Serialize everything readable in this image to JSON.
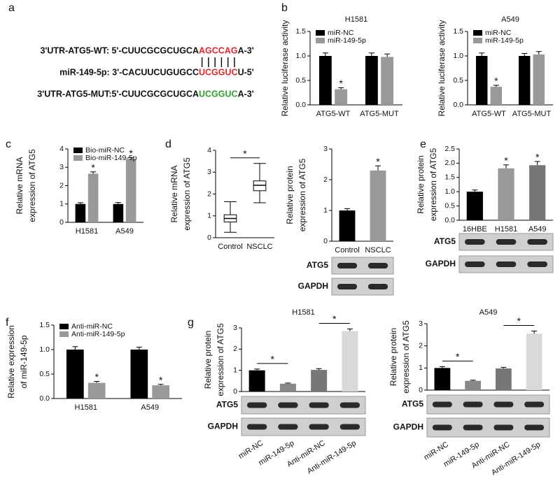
{
  "panel_labels": [
    "a",
    "b",
    "c",
    "d",
    "e",
    "f",
    "g"
  ],
  "sequences": [
    {
      "label": "3'UTR-ATG5-WT: 5'-CUUCGCGCUGCA",
      "site": "AGCCAG",
      "end": "A-3'",
      "color": "#e8262a"
    },
    {
      "label": "miR-149-5p: 3'-CACUUCUGUGCC",
      "site": "UCGGUC",
      "end": "U-5'",
      "color": "#e8262a"
    },
    {
      "label": "3'UTR-ATG5-MUT:5'-CUUCGCGCUGCA",
      "site": "UCGGUC",
      "end": "A-3'",
      "color": "#2aa52a"
    }
  ],
  "chart_data": [
    {
      "type": "bar",
      "title": "H1581",
      "ylabel": [
        "Relative luciferase activity"
      ],
      "categories": [
        "ATG5-WT",
        "ATG5-MUT"
      ],
      "series": [
        {
          "name": "miR-NC",
          "color": "#000000",
          "values": [
            1.0,
            1.0
          ],
          "errors": [
            0.06,
            0.06
          ]
        },
        {
          "name": "miR-149-5p",
          "color": "#999999",
          "values": [
            0.32,
            0.98
          ],
          "errors": [
            0.03,
            0.06
          ]
        }
      ],
      "ylim": [
        0,
        1.5
      ],
      "yticks": [
        {
          "value": 0,
          "label": "0.0"
        },
        0.5,
        {
          "value": 1,
          "label": "1.0"
        },
        1.5
      ],
      "legend": "upper left",
      "annotations": [
        {
          "text": "*",
          "series": 1,
          "index": 0
        }
      ]
    },
    {
      "type": "bar",
      "title": "A549",
      "ylabel": [
        "Relative luciferase activity"
      ],
      "categories": [
        "ATG5-WT",
        "ATG5-MUT"
      ],
      "series": [
        {
          "name": "miR-NC",
          "color": "#000000",
          "values": [
            1.0,
            1.0
          ],
          "errors": [
            0.06,
            0.05
          ]
        },
        {
          "name": "miR-149-5p",
          "color": "#999999",
          "values": [
            0.37,
            1.03
          ],
          "errors": [
            0.03,
            0.06
          ]
        }
      ],
      "ylim": [
        0,
        1.5
      ],
      "yticks": [
        {
          "value": 0,
          "label": "0.0"
        },
        0.5,
        {
          "value": 1,
          "label": "1.0"
        },
        1.5
      ],
      "legend": "upper left",
      "annotations": [
        {
          "text": "*",
          "series": 1,
          "index": 0
        }
      ]
    },
    {
      "type": "bar",
      "ylabel": [
        "Relative  mRNA",
        "expression of ATG5"
      ],
      "categories": [
        "H1581",
        "A549"
      ],
      "series": [
        {
          "name": "Bio-miR-NC",
          "color": "#000000",
          "values": [
            1,
            1
          ],
          "errors": [
            0.07,
            0.08
          ]
        },
        {
          "name": "Bio-miR-149-5p",
          "color": "#999999",
          "values": [
            2.65,
            3.45
          ],
          "errors": [
            0.1,
            0.08
          ]
        }
      ],
      "ylim": [
        0,
        4
      ],
      "yticks": [
        0,
        1,
        2,
        3,
        4
      ],
      "legend": "upper left",
      "annotations": [
        {
          "text": "*",
          "series": 1,
          "index": 0
        },
        {
          "text": "*",
          "series": 1,
          "index": 1
        }
      ]
    },
    {
      "type": "box",
      "ylabel": [
        "Relative mRNA",
        "expression of ATG5"
      ],
      "categories": [
        "Control",
        "NSCLC"
      ],
      "boxes": [
        {
          "min": 0.25,
          "q1": 0.72,
          "median": 0.88,
          "q3": 1.05,
          "max": 1.65
        },
        {
          "min": 1.6,
          "q1": 2.15,
          "median": 2.4,
          "q3": 2.6,
          "max": 3.4
        }
      ],
      "ylim": [
        0,
        4
      ],
      "yticks": [
        0,
        1,
        2,
        3,
        4
      ],
      "annotations": [
        {
          "text": "*",
          "from": 0,
          "to": 1
        }
      ]
    },
    {
      "type": "bar",
      "ylabel": [
        "Relative protein",
        "expression of ATG5"
      ],
      "categories": [
        "Control",
        "NSCLC"
      ],
      "values": [
        1,
        2.3
      ],
      "errors": [
        0.06,
        0.15
      ],
      "colors": [
        "#000000",
        "#999999"
      ],
      "ylim": [
        0,
        3
      ],
      "yticks": [
        0,
        1,
        2,
        3
      ],
      "annotations": [
        {
          "text": "*",
          "index": 1
        }
      ],
      "blots": [
        "ATG5",
        "GAPDH"
      ]
    },
    {
      "type": "bar",
      "ylabel": [
        "Relative protein",
        "expression of ATG5"
      ],
      "categories": [
        "16HBE",
        "H1581",
        "A549"
      ],
      "values": [
        1,
        1.82,
        1.93
      ],
      "errors": [
        0.06,
        0.12,
        0.13
      ],
      "colors": [
        "#000000",
        "#999999",
        "#777777"
      ],
      "ylim": [
        0,
        2.5
      ],
      "yticks": [
        {
          "value": 0,
          "label": "0.0"
        },
        0.5,
        {
          "value": 1,
          "label": "1.0"
        },
        1.5,
        {
          "value": 2,
          "label": "2.0"
        },
        2.5
      ],
      "annotations": [
        {
          "text": "*",
          "index": 1
        },
        {
          "text": "*",
          "index": 2
        }
      ],
      "blots": [
        "ATG5",
        "GAPDH"
      ]
    },
    {
      "type": "bar",
      "ylabel": [
        "Relative expression",
        "of miR-149-5p"
      ],
      "categories": [
        "H1581",
        "A549"
      ],
      "series": [
        {
          "name": "Anti-miR-NC",
          "color": "#000000",
          "values": [
            1,
            1
          ],
          "errors": [
            0.06,
            0.05
          ]
        },
        {
          "name": "Anti-miR-149-5p",
          "color": "#999999",
          "values": [
            0.32,
            0.27
          ],
          "errors": [
            0.03,
            0.02
          ]
        }
      ],
      "ylim": [
        0,
        1.5
      ],
      "yticks": [
        {
          "value": 0,
          "label": "0.0"
        },
        0.5,
        {
          "value": 1,
          "label": "1.0"
        },
        1.5
      ],
      "legend": "upper left",
      "annotations": [
        {
          "text": "*",
          "series": 1,
          "index": 0
        },
        {
          "text": "*",
          "series": 1,
          "index": 1
        }
      ]
    },
    {
      "type": "bar",
      "title": "H1581",
      "ylabel": [
        "Relative protein",
        "expression of ATG5"
      ],
      "categories": [
        "miR-NC",
        "miR-149-5p",
        "Anti-miR-NC",
        "Anti-miR-149-5p"
      ],
      "values": [
        1,
        0.37,
        1.02,
        2.85
      ],
      "errors": [
        0.06,
        0.03,
        0.06,
        0.1
      ],
      "colors": [
        "#000000",
        "#888888",
        "#777777",
        "#d9d9d9"
      ],
      "ylim": [
        0,
        3
      ],
      "yticks": [
        0,
        1,
        2,
        3
      ],
      "annotations": [
        {
          "text": "*",
          "from": 0,
          "to": 1
        },
        {
          "text": "*",
          "from": 2,
          "to": 3
        }
      ],
      "blots": [
        "ATG5",
        "GAPDH"
      ]
    },
    {
      "type": "bar",
      "title": "A549",
      "ylabel": [
        "Relative protein",
        "expression of ATG5"
      ],
      "categories": [
        "miR-NC",
        "miR-149-5p",
        "Anti-miR-NC",
        "Anti-miR-149-5p"
      ],
      "values": [
        1,
        0.42,
        0.98,
        2.55
      ],
      "errors": [
        0.06,
        0.03,
        0.05,
        0.12
      ],
      "colors": [
        "#000000",
        "#888888",
        "#777777",
        "#d9d9d9"
      ],
      "ylim": [
        0,
        3
      ],
      "yticks": [
        0,
        1,
        2,
        3
      ],
      "annotations": [
        {
          "text": "*",
          "from": 0,
          "to": 1
        },
        {
          "text": "*",
          "from": 2,
          "to": 3
        }
      ],
      "blots": [
        "ATG5",
        "GAPDH"
      ]
    }
  ]
}
